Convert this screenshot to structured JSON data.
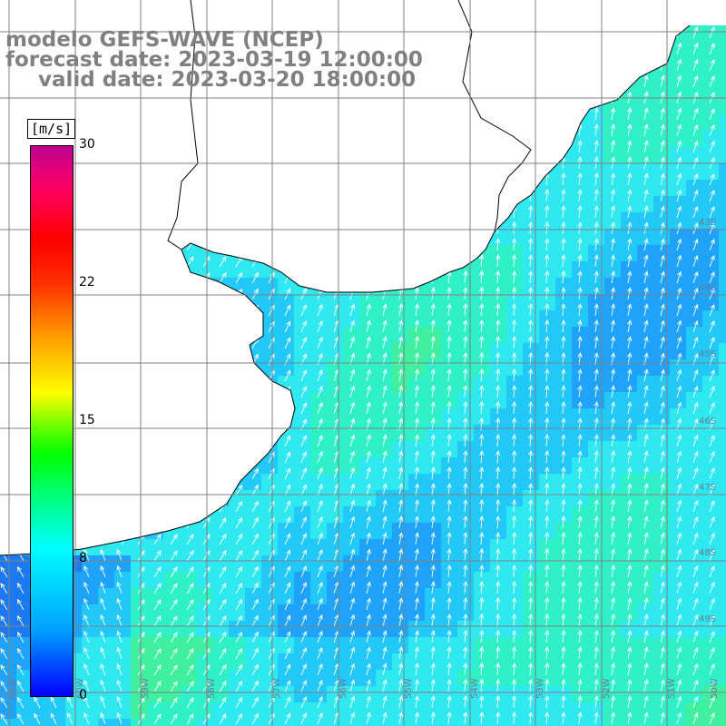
{
  "titles": {
    "line1": "modelo GEFS-WAVE (NCEP)",
    "line2": "forecast date: 2023-03-19 12:00:00",
    "line3": "valid date: 2023-03-20 18:00:00"
  },
  "colorbar": {
    "unit": "[m/s]",
    "ticks": [
      "0",
      "8",
      "15",
      "22",
      "30"
    ],
    "range": [
      0,
      30
    ]
  },
  "lat_labels": [
    "43S",
    "44S",
    "45S",
    "46S",
    "47S",
    "48S",
    "49S"
  ],
  "lon_labels": [
    "61W",
    "60W",
    "59W",
    "58W",
    "57W",
    "56W",
    "55W",
    "54W",
    "53W",
    "52W",
    "51W",
    "50W"
  ],
  "colors": {
    "land": "#ffffff",
    "coast": "#000000",
    "grid": "#808080",
    "arrows": "#ffffff",
    "title": "#808080"
  },
  "wind_direction": "from south-southwest"
}
